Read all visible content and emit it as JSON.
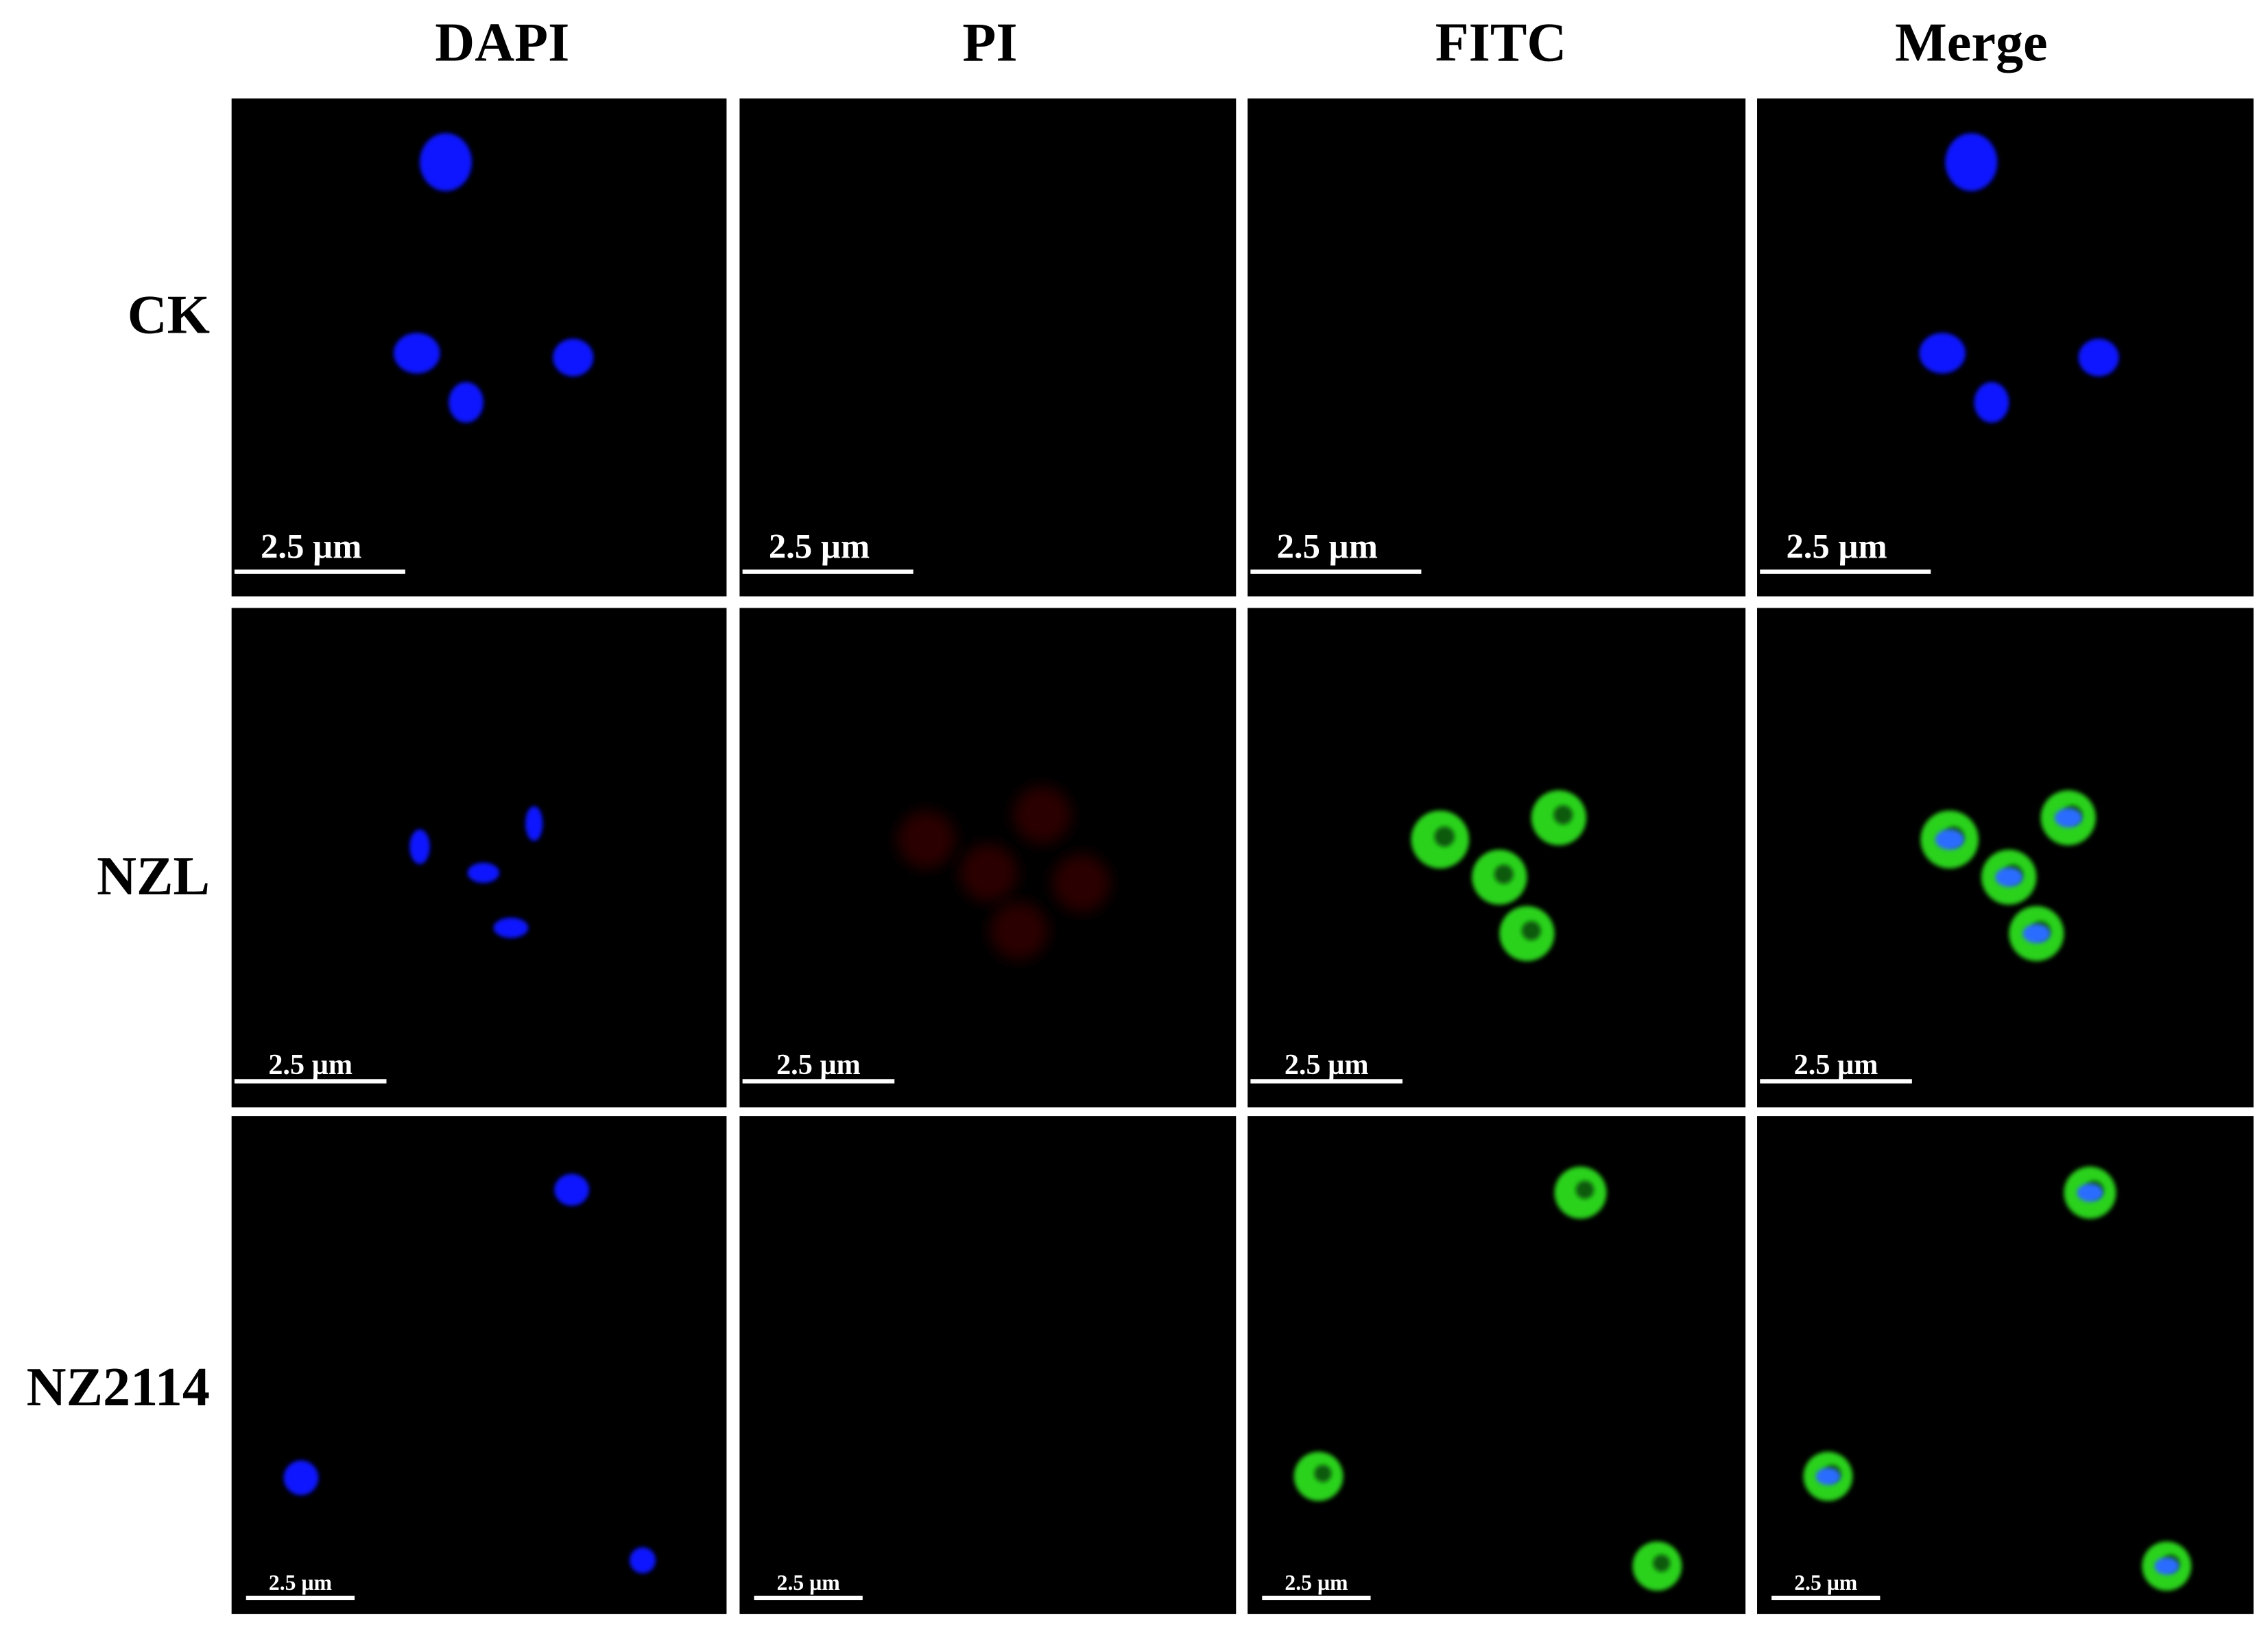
{
  "columns": [
    "DAPI",
    "PI",
    "FITC",
    "Merge"
  ],
  "rows": [
    "CK",
    "NZL",
    "NZ2114"
  ],
  "panels": [
    [
      "2.5 µm",
      "2.5 µm",
      "2.5 µm",
      "2.5 µm"
    ],
    [
      "2.5 µm",
      "2.5 µm",
      "2.5 µm",
      "2.5 µm"
    ],
    [
      "2.5 µm",
      "2.5 µm",
      "2.5 µm",
      "2.5 µm"
    ]
  ]
}
